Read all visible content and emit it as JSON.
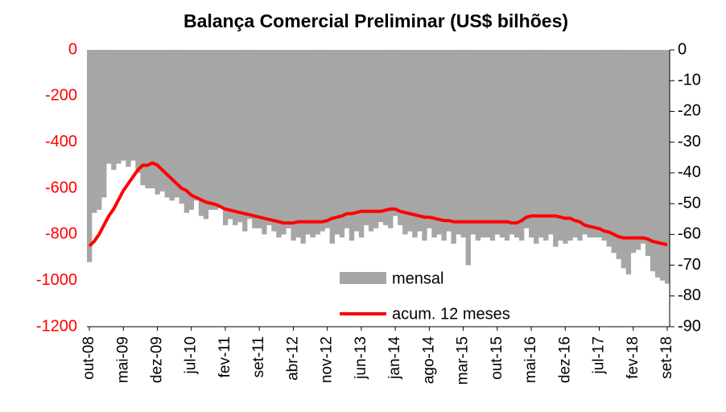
{
  "chart_data": {
    "type": "bar-line",
    "title": "Balança Comercial Preliminar (US$ bilhões)",
    "categories": [
      "out-08",
      null,
      null,
      null,
      null,
      null,
      null,
      "mai-09",
      null,
      null,
      null,
      null,
      null,
      null,
      "dez-09",
      null,
      null,
      null,
      null,
      null,
      null,
      "jul-10",
      null,
      null,
      null,
      null,
      null,
      null,
      "fev-11",
      null,
      null,
      null,
      null,
      null,
      null,
      "set-11",
      null,
      null,
      null,
      null,
      null,
      null,
      "abr-12",
      null,
      null,
      null,
      null,
      null,
      null,
      "nov-12",
      null,
      null,
      null,
      null,
      null,
      null,
      "jun-13",
      null,
      null,
      null,
      null,
      null,
      null,
      "jan-14",
      null,
      null,
      null,
      null,
      null,
      null,
      "ago-14",
      null,
      null,
      null,
      null,
      null,
      null,
      "mar-15",
      null,
      null,
      null,
      null,
      null,
      null,
      "out-15",
      null,
      null,
      null,
      null,
      null,
      null,
      "mai-16",
      null,
      null,
      null,
      null,
      null,
      null,
      "dez-16",
      null,
      null,
      null,
      null,
      null,
      null,
      "jul-17",
      null,
      null,
      null,
      null,
      null,
      null,
      "fev-18",
      null,
      null,
      null,
      null,
      null,
      null,
      "set-18"
    ],
    "series": [
      {
        "name": "mensal",
        "type": "bar",
        "axis": "y2",
        "color": "#a6a6a6",
        "values": [
          -69,
          -53,
          -52,
          -48,
          -37,
          -39,
          -37,
          -36,
          -38,
          -36,
          -40,
          -44,
          -45,
          -45,
          -47,
          -46,
          -48,
          -49,
          -48,
          -50,
          -53,
          -52,
          -49,
          -54,
          -55,
          -52,
          -52,
          -51,
          -57,
          -55,
          -57,
          -56,
          -59,
          -55,
          -58,
          -58,
          -60,
          -57,
          -59,
          -61,
          -60,
          -58,
          -62,
          -61,
          -63,
          -60,
          -61,
          -60,
          -59,
          -58,
          -63,
          -60,
          -61,
          -58,
          -62,
          -59,
          -61,
          -57,
          -59,
          -58,
          -56,
          -57,
          -58,
          -54,
          -57,
          -60,
          -59,
          -61,
          -59,
          -62,
          -58,
          -61,
          -60,
          -62,
          -59,
          -63,
          -60,
          -61,
          -70,
          -60,
          -62,
          -61,
          -61,
          -62,
          -60,
          -61,
          -62,
          -60,
          -61,
          -62,
          -58,
          -61,
          -63,
          -61,
          -62,
          -60,
          -64,
          -62,
          -63,
          -62,
          -61,
          -62,
          -60,
          -61,
          -61,
          -61,
          -62,
          -64,
          -66,
          -68,
          -71,
          -73,
          -66,
          -65,
          -63,
          -67,
          -72,
          -74,
          -75,
          -76
        ]
      },
      {
        "name": "acum. 12 meses",
        "type": "line",
        "color": "#ff0000",
        "values": [
          -850,
          -830,
          -800,
          -760,
          -720,
          -690,
          -650,
          -610,
          -580,
          -550,
          -520,
          -500,
          -500,
          -490,
          -500,
          -520,
          -540,
          -560,
          -580,
          -600,
          -610,
          -630,
          -640,
          -650,
          -660,
          -665,
          -670,
          -680,
          -690,
          -695,
          -700,
          -705,
          -710,
          -715,
          -720,
          -725,
          -730,
          -735,
          -740,
          -745,
          -750,
          -750,
          -750,
          -745,
          -745,
          -745,
          -745,
          -745,
          -745,
          -740,
          -730,
          -725,
          -720,
          -710,
          -710,
          -705,
          -700,
          -700,
          -700,
          -700,
          -700,
          -695,
          -690,
          -690,
          -700,
          -705,
          -710,
          -715,
          -720,
          -725,
          -725,
          -730,
          -735,
          -740,
          -740,
          -745,
          -745,
          -745,
          -745,
          -745,
          -745,
          -745,
          -745,
          -745,
          -745,
          -745,
          -745,
          -750,
          -750,
          -740,
          -725,
          -720,
          -720,
          -720,
          -720,
          -720,
          -720,
          -725,
          -730,
          -730,
          -740,
          -745,
          -760,
          -765,
          -770,
          -775,
          -785,
          -790,
          -800,
          -810,
          -815,
          -815,
          -815,
          -815,
          -815,
          -820,
          -830,
          -835,
          -840,
          -845
        ]
      }
    ],
    "ylim": [
      0,
      -1200
    ],
    "yticks": [
      0,
      -200,
      -400,
      -600,
      -800,
      -1000,
      -1200
    ],
    "ytick_color": "#ff0000",
    "y2lim": [
      0,
      -90
    ],
    "y2ticks": [
      0,
      -10,
      -20,
      -30,
      -40,
      -50,
      -60,
      -70,
      -80,
      -90
    ]
  }
}
